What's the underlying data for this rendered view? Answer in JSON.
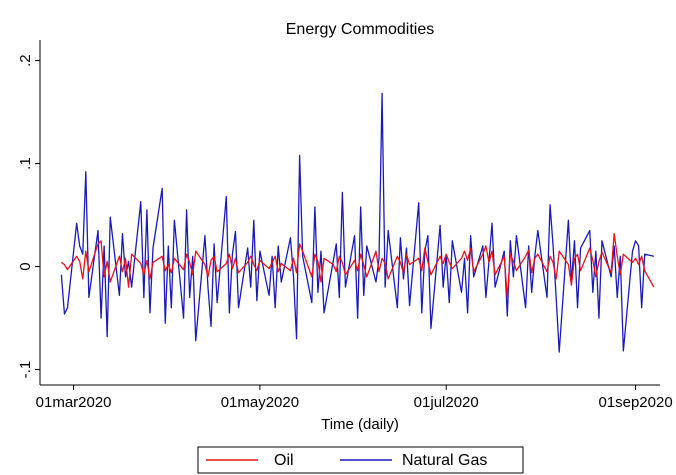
{
  "chart_data": {
    "type": "line",
    "title": "Energy Commodities",
    "x_label": "Time (daily)",
    "x": [
      "2020-02-26",
      "2020-02-27",
      "2020-02-28",
      "2020-03-02",
      "2020-03-03",
      "2020-03-04",
      "2020-03-05",
      "2020-03-06",
      "2020-03-09",
      "2020-03-10",
      "2020-03-11",
      "2020-03-12",
      "2020-03-13",
      "2020-03-16",
      "2020-03-17",
      "2020-03-18",
      "2020-03-19",
      "2020-03-20",
      "2020-03-23",
      "2020-03-24",
      "2020-03-25",
      "2020-03-26",
      "2020-03-27",
      "2020-03-30",
      "2020-03-31",
      "2020-04-01",
      "2020-04-02",
      "2020-04-03",
      "2020-04-06",
      "2020-04-07",
      "2020-04-08",
      "2020-04-09",
      "2020-04-10",
      "2020-04-13",
      "2020-04-14",
      "2020-04-15",
      "2020-04-16",
      "2020-04-17",
      "2020-04-20",
      "2020-04-21",
      "2020-04-22",
      "2020-04-23",
      "2020-04-24",
      "2020-04-27",
      "2020-04-28",
      "2020-04-29",
      "2020-04-30",
      "2020-05-01",
      "2020-05-04",
      "2020-05-05",
      "2020-05-06",
      "2020-05-07",
      "2020-05-08",
      "2020-05-11",
      "2020-05-12",
      "2020-05-13",
      "2020-05-14",
      "2020-05-15",
      "2020-05-18",
      "2020-05-19",
      "2020-05-20",
      "2020-05-21",
      "2020-05-22",
      "2020-05-25",
      "2020-05-26",
      "2020-05-27",
      "2020-05-28",
      "2020-05-29",
      "2020-06-01",
      "2020-06-02",
      "2020-06-03",
      "2020-06-04",
      "2020-06-05",
      "2020-06-08",
      "2020-06-09",
      "2020-06-10",
      "2020-06-11",
      "2020-06-12",
      "2020-06-15",
      "2020-06-16",
      "2020-06-17",
      "2020-06-18",
      "2020-06-19",
      "2020-06-22",
      "2020-06-23",
      "2020-06-24",
      "2020-06-25",
      "2020-06-26",
      "2020-06-29",
      "2020-06-30",
      "2020-07-01",
      "2020-07-02",
      "2020-07-03",
      "2020-07-06",
      "2020-07-07",
      "2020-07-08",
      "2020-07-09",
      "2020-07-10",
      "2020-07-13",
      "2020-07-14",
      "2020-07-15",
      "2020-07-16",
      "2020-07-17",
      "2020-07-20",
      "2020-07-21",
      "2020-07-22",
      "2020-07-23",
      "2020-07-24",
      "2020-07-27",
      "2020-07-28",
      "2020-07-29",
      "2020-07-30",
      "2020-07-31",
      "2020-08-03",
      "2020-08-04",
      "2020-08-05",
      "2020-08-06",
      "2020-08-07",
      "2020-08-10",
      "2020-08-11",
      "2020-08-12",
      "2020-08-13",
      "2020-08-14",
      "2020-08-17",
      "2020-08-18",
      "2020-08-19",
      "2020-08-20",
      "2020-08-21",
      "2020-08-24",
      "2020-08-25",
      "2020-08-26",
      "2020-08-27",
      "2020-08-28",
      "2020-08-31",
      "2020-09-01",
      "2020-09-02",
      "2020-09-03",
      "2020-09-04",
      "2020-09-07"
    ],
    "series": [
      {
        "name": "Oil",
        "color": "#e8121b",
        "values": [
          0.004,
          0.002,
          -0.003,
          0.01,
          0.005,
          -0.012,
          0.015,
          -0.005,
          0.022,
          0.025,
          -0.01,
          0.005,
          -0.015,
          0.01,
          -0.005,
          0.008,
          -0.02,
          0.012,
          0.003,
          -0.008,
          0.006,
          -0.012,
          0.004,
          0.01,
          -0.004,
          0.002,
          -0.006,
          0.008,
          -0.003,
          0.012,
          0.004,
          -0.008,
          0.015,
          0.002,
          -0.01,
          0.006,
          0.01,
          -0.005,
          0.003,
          0.012,
          -0.002,
          0.008,
          -0.006,
          0.004,
          0.01,
          0.002,
          -0.004,
          0.006,
          -0.002,
          0.004,
          0.01,
          -0.005,
          0.003,
          -0.004,
          0.008,
          -0.006,
          0.022,
          0.015,
          -0.01,
          0.012,
          0.005,
          -0.015,
          0.008,
          0.002,
          -0.005,
          0.01,
          0.004,
          -0.008,
          0.006,
          -0.004,
          0.012,
          0.002,
          -0.01,
          0.015,
          -0.005,
          0.008,
          0.003,
          -0.012,
          0.01,
          0.004,
          -0.006,
          0.012,
          0.002,
          0.008,
          -0.004,
          0.018,
          0.005,
          -0.008,
          0.01,
          0.003,
          0.012,
          0.004,
          -0.002,
          0.008,
          0.015,
          0.006,
          0.018,
          -0.005,
          0.012,
          0.02,
          0.004,
          0.015,
          -0.008,
          0.01,
          -0.03,
          0.012,
          0.005,
          -0.004,
          0.01,
          0.016,
          -0.006,
          0.008,
          0.012,
          -0.005,
          0.01,
          0.004,
          -0.012,
          0.015,
          0.002,
          -0.018,
          0.008,
          0.012,
          -0.004,
          0.018,
          0.006,
          -0.01,
          0.005,
          0.014,
          -0.006,
          0.032,
          0.01,
          -0.008,
          0.012,
          0.004,
          0.008,
          0.002,
          0.01,
          -0.004,
          -0.02
        ]
      },
      {
        "name": "Natural Gas",
        "color": "#1a1ab8",
        "values": [
          -0.008,
          -0.046,
          -0.04,
          0.042,
          0.02,
          0.012,
          0.092,
          -0.03,
          0.035,
          -0.05,
          0.02,
          -0.068,
          0.048,
          -0.028,
          0.032,
          -0.01,
          0.005,
          -0.02,
          0.063,
          -0.03,
          0.055,
          -0.045,
          0.018,
          0.076,
          -0.055,
          0.02,
          -0.04,
          0.045,
          -0.05,
          0.055,
          -0.03,
          0.01,
          -0.072,
          0.03,
          -0.02,
          -0.058,
          0.022,
          -0.035,
          0.068,
          -0.045,
          0.012,
          0.034,
          -0.04,
          0.018,
          -0.02,
          0.045,
          -0.033,
          0.015,
          -0.028,
          0.01,
          -0.04,
          0.02,
          -0.015,
          0.028,
          -0.01,
          -0.07,
          0.108,
          0.01,
          -0.035,
          0.058,
          -0.025,
          0.015,
          -0.045,
          0.005,
          0.022,
          -0.03,
          0.072,
          -0.02,
          0.03,
          -0.05,
          0.058,
          -0.028,
          0.02,
          -0.015,
          0.008,
          0.168,
          -0.02,
          0.035,
          -0.04,
          0.028,
          -0.012,
          0.018,
          -0.038,
          0.062,
          -0.045,
          0.015,
          0.03,
          -0.06,
          0.04,
          -0.02,
          0.012,
          -0.035,
          0.025,
          -0.025,
          0.008,
          -0.045,
          0.03,
          -0.01,
          0.02,
          -0.03,
          0.005,
          0.042,
          -0.02,
          0.015,
          -0.048,
          0.025,
          -0.01,
          0.03,
          -0.04,
          0.02,
          -0.025,
          0.01,
          0.035,
          -0.03,
          0.06,
          0.02,
          -0.03,
          -0.083,
          0.045,
          -0.015,
          0.025,
          -0.04,
          0.018,
          0.035,
          -0.025,
          0.015,
          -0.05,
          0.025,
          -0.01,
          0.02,
          -0.03,
          0.01,
          -0.082,
          0.015,
          0.025,
          0.02,
          -0.04,
          0.012,
          0.01
        ]
      }
    ],
    "xlim": [
      "2020-02-19",
      "2020-09-09"
    ],
    "xticks": [
      {
        "value": "2020-03-01",
        "label": "01mar2020"
      },
      {
        "value": "2020-05-01",
        "label": "01may2020"
      },
      {
        "value": "2020-07-01",
        "label": "01jul2020"
      },
      {
        "value": "2020-09-01",
        "label": "01sep2020"
      }
    ],
    "ylim": [
      -0.115,
      0.22
    ],
    "yticks": [
      {
        "value": -0.1,
        "label": "-.1"
      },
      0,
      {
        "value": 0.1,
        "label": ".1"
      },
      {
        "value": 0.2,
        "label": ".2"
      }
    ],
    "legend": "bottom"
  }
}
